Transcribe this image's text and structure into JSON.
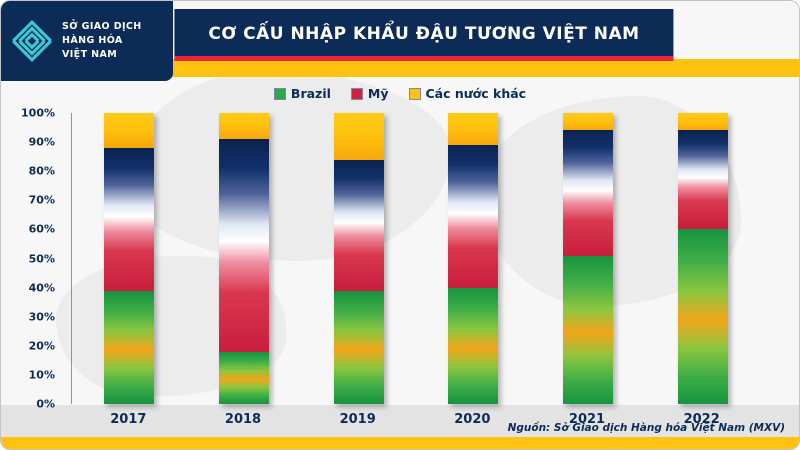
{
  "logo": {
    "line1": "SỞ GIAO DỊCH",
    "line2": "HÀNG HÓA",
    "line3": "VIỆT NAM"
  },
  "colors": {
    "navy": "#0c2b57",
    "gold": "#ffc20e",
    "red_accent": "#e8273f",
    "teal": "#3ec6d4"
  },
  "chart_data": {
    "type": "bar",
    "subtype": "stacked-100-percent",
    "title": "CƠ CẤU NHẬP KHẨU ĐẬU TƯƠNG VIỆT NAM",
    "categories": [
      "2017",
      "2018",
      "2019",
      "2020",
      "2021",
      "2022"
    ],
    "series": [
      {
        "name": "Brazil",
        "color": "#2aa84a",
        "values": [
          39,
          18,
          39,
          40,
          51,
          60
        ]
      },
      {
        "name": "Mỹ",
        "color": "#d2203f",
        "values": [
          49,
          73,
          45,
          49,
          43,
          34
        ]
      },
      {
        "name": "Các nước khác",
        "color": "#ffc20e",
        "values": [
          12,
          9,
          16,
          11,
          6,
          6
        ]
      }
    ],
    "yticks": [
      "0%",
      "10%",
      "20%",
      "30%",
      "40%",
      "50%",
      "60%",
      "70%",
      "80%",
      "90%",
      "100%"
    ],
    "ylim": [
      0,
      100
    ],
    "grid": false,
    "legend_position": "top",
    "source": "Nguồn: Sở Giao dịch Hàng hóa Việt Nam (MXV)"
  }
}
